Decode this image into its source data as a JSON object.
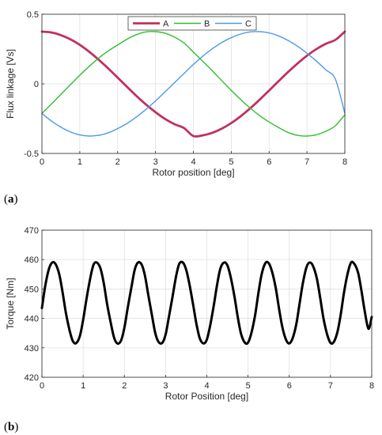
{
  "colors": {
    "A": "#c2305f",
    "B": "#2fbf2f",
    "C": "#4a9be8",
    "torque": "#000000",
    "grid": "#dcdcdc",
    "axis": "#262626"
  },
  "panels": [
    {
      "open": "(",
      "letter": "a",
      "close": ")"
    },
    {
      "open": "(",
      "letter": "b",
      "close": ")"
    }
  ],
  "chart_data": [
    {
      "type": "line",
      "xlabel": "Rotor position [deg]",
      "ylabel": "Flux linkage [Vs]",
      "xlim": [
        0,
        8
      ],
      "ylim": [
        -0.5,
        0.5
      ],
      "xticks": [
        0,
        1,
        2,
        3,
        4,
        5,
        6,
        7,
        8
      ],
      "yticks": [
        -0.5,
        0,
        0.5
      ],
      "ytick_labels": [
        "-0.5",
        "0",
        "0.5"
      ],
      "grid": true,
      "legend": {
        "placement": "top-center",
        "orientation": "horizontal"
      },
      "x": [
        0,
        0.25,
        0.5,
        0.75,
        1,
        1.25,
        1.5,
        1.75,
        2,
        2.25,
        2.5,
        2.75,
        3,
        3.25,
        3.5,
        3.75,
        4,
        4.25,
        4.5,
        4.75,
        5,
        5.25,
        5.5,
        5.75,
        6,
        6.25,
        6.5,
        6.75,
        7,
        7.25,
        7.5,
        7.75,
        8
      ],
      "series": [
        {
          "name": "A",
          "values": [
            0.375,
            0.369,
            0.35,
            0.32,
            0.28,
            0.23,
            0.173,
            0.111,
            0.045,
            -0.022,
            -0.088,
            -0.149,
            -0.204,
            -0.252,
            -0.29,
            -0.317,
            -0.375,
            -0.37,
            -0.352,
            -0.322,
            -0.282,
            -0.233,
            -0.176,
            -0.114,
            -0.048,
            0.019,
            0.085,
            0.146,
            0.202,
            0.25,
            0.288,
            0.316,
            0.375
          ]
        },
        {
          "name": "B",
          "values": [
            -0.212,
            -0.145,
            -0.076,
            -0.007,
            0.062,
            0.126,
            0.185,
            0.236,
            0.279,
            0.321,
            0.354,
            0.373,
            0.375,
            0.364,
            0.336,
            0.294,
            0.228,
            0.162,
            0.094,
            0.023,
            -0.047,
            -0.113,
            -0.174,
            -0.228,
            -0.274,
            -0.314,
            -0.349,
            -0.37,
            -0.375,
            -0.366,
            -0.341,
            -0.301,
            -0.222
          ]
        },
        {
          "name": "C",
          "values": [
            -0.212,
            -0.267,
            -0.311,
            -0.345,
            -0.367,
            -0.375,
            -0.37,
            -0.352,
            -0.322,
            -0.284,
            -0.237,
            -0.183,
            -0.123,
            -0.058,
            0.008,
            0.074,
            0.139,
            0.199,
            0.252,
            0.297,
            0.332,
            0.358,
            0.373,
            0.375,
            0.366,
            0.344,
            0.312,
            0.27,
            0.22,
            0.163,
            0.1,
            0.034,
            -0.212
          ]
        }
      ]
    },
    {
      "type": "line",
      "xlabel": "Rotor Position [deg]",
      "ylabel": "Torque [Nm]",
      "xlim": [
        0,
        8
      ],
      "ylim": [
        420,
        470
      ],
      "xticks": [
        0,
        1,
        2,
        3,
        4,
        5,
        6,
        7,
        8
      ],
      "yticks": [
        420,
        430,
        440,
        450,
        460,
        470
      ],
      "grid": true,
      "x": [
        0,
        0.08,
        0.17,
        0.25,
        0.33,
        0.42,
        0.5,
        0.58,
        0.67,
        0.75,
        0.83,
        0.92,
        1.0,
        1.08,
        1.17,
        1.25,
        1.33,
        1.42,
        1.5,
        1.58,
        1.67,
        1.75,
        1.83,
        1.92,
        2.0,
        2.08,
        2.17,
        2.25,
        2.33,
        2.42,
        2.5,
        2.58,
        2.67,
        2.75,
        2.83,
        2.92,
        3.0,
        3.08,
        3.17,
        3.25,
        3.33,
        3.42,
        3.5,
        3.58,
        3.67,
        3.75,
        3.83,
        3.92,
        4.0,
        4.08,
        4.17,
        4.25,
        4.33,
        4.42,
        4.5,
        4.58,
        4.67,
        4.75,
        4.83,
        4.92,
        5.0,
        5.08,
        5.17,
        5.25,
        5.33,
        5.42,
        5.5,
        5.58,
        5.67,
        5.75,
        5.83,
        5.92,
        6.0,
        6.08,
        6.17,
        6.25,
        6.33,
        6.42,
        6.5,
        6.58,
        6.67,
        6.75,
        6.83,
        6.92,
        7.0,
        7.08,
        7.17,
        7.25,
        7.33,
        7.42,
        7.5,
        7.58,
        7.67,
        7.75,
        7.83,
        7.92,
        8.0
      ],
      "values": [
        443.5,
        451.0,
        456.8,
        459.0,
        458.5,
        455.0,
        449.0,
        442.0,
        436.0,
        432.3,
        431.6,
        434.0,
        439.5,
        446.5,
        453.5,
        458.2,
        459.0,
        457.0,
        452.0,
        445.0,
        438.5,
        433.5,
        431.5,
        432.5,
        436.8,
        443.5,
        450.5,
        456.5,
        459.0,
        458.3,
        454.5,
        448.0,
        441.0,
        435.0,
        432.0,
        431.7,
        434.5,
        440.5,
        447.5,
        454.0,
        458.5,
        459.0,
        456.5,
        451.5,
        444.5,
        438.0,
        433.2,
        431.5,
        432.8,
        437.5,
        444.5,
        451.5,
        457.0,
        459.0,
        458.0,
        454.0,
        447.5,
        440.5,
        434.8,
        431.8,
        431.8,
        435.0,
        441.0,
        448.5,
        455.0,
        458.8,
        458.8,
        456.0,
        450.5,
        443.5,
        437.2,
        432.8,
        431.5,
        433.2,
        438.0,
        445.0,
        452.0,
        457.5,
        459.0,
        457.7,
        453.5,
        447.0,
        440.0,
        434.5,
        431.7,
        432.0,
        435.5,
        441.5,
        449.0,
        455.5,
        459.0,
        458.5,
        455.5,
        449.5,
        442.5,
        436.5,
        440.5
      ]
    }
  ]
}
